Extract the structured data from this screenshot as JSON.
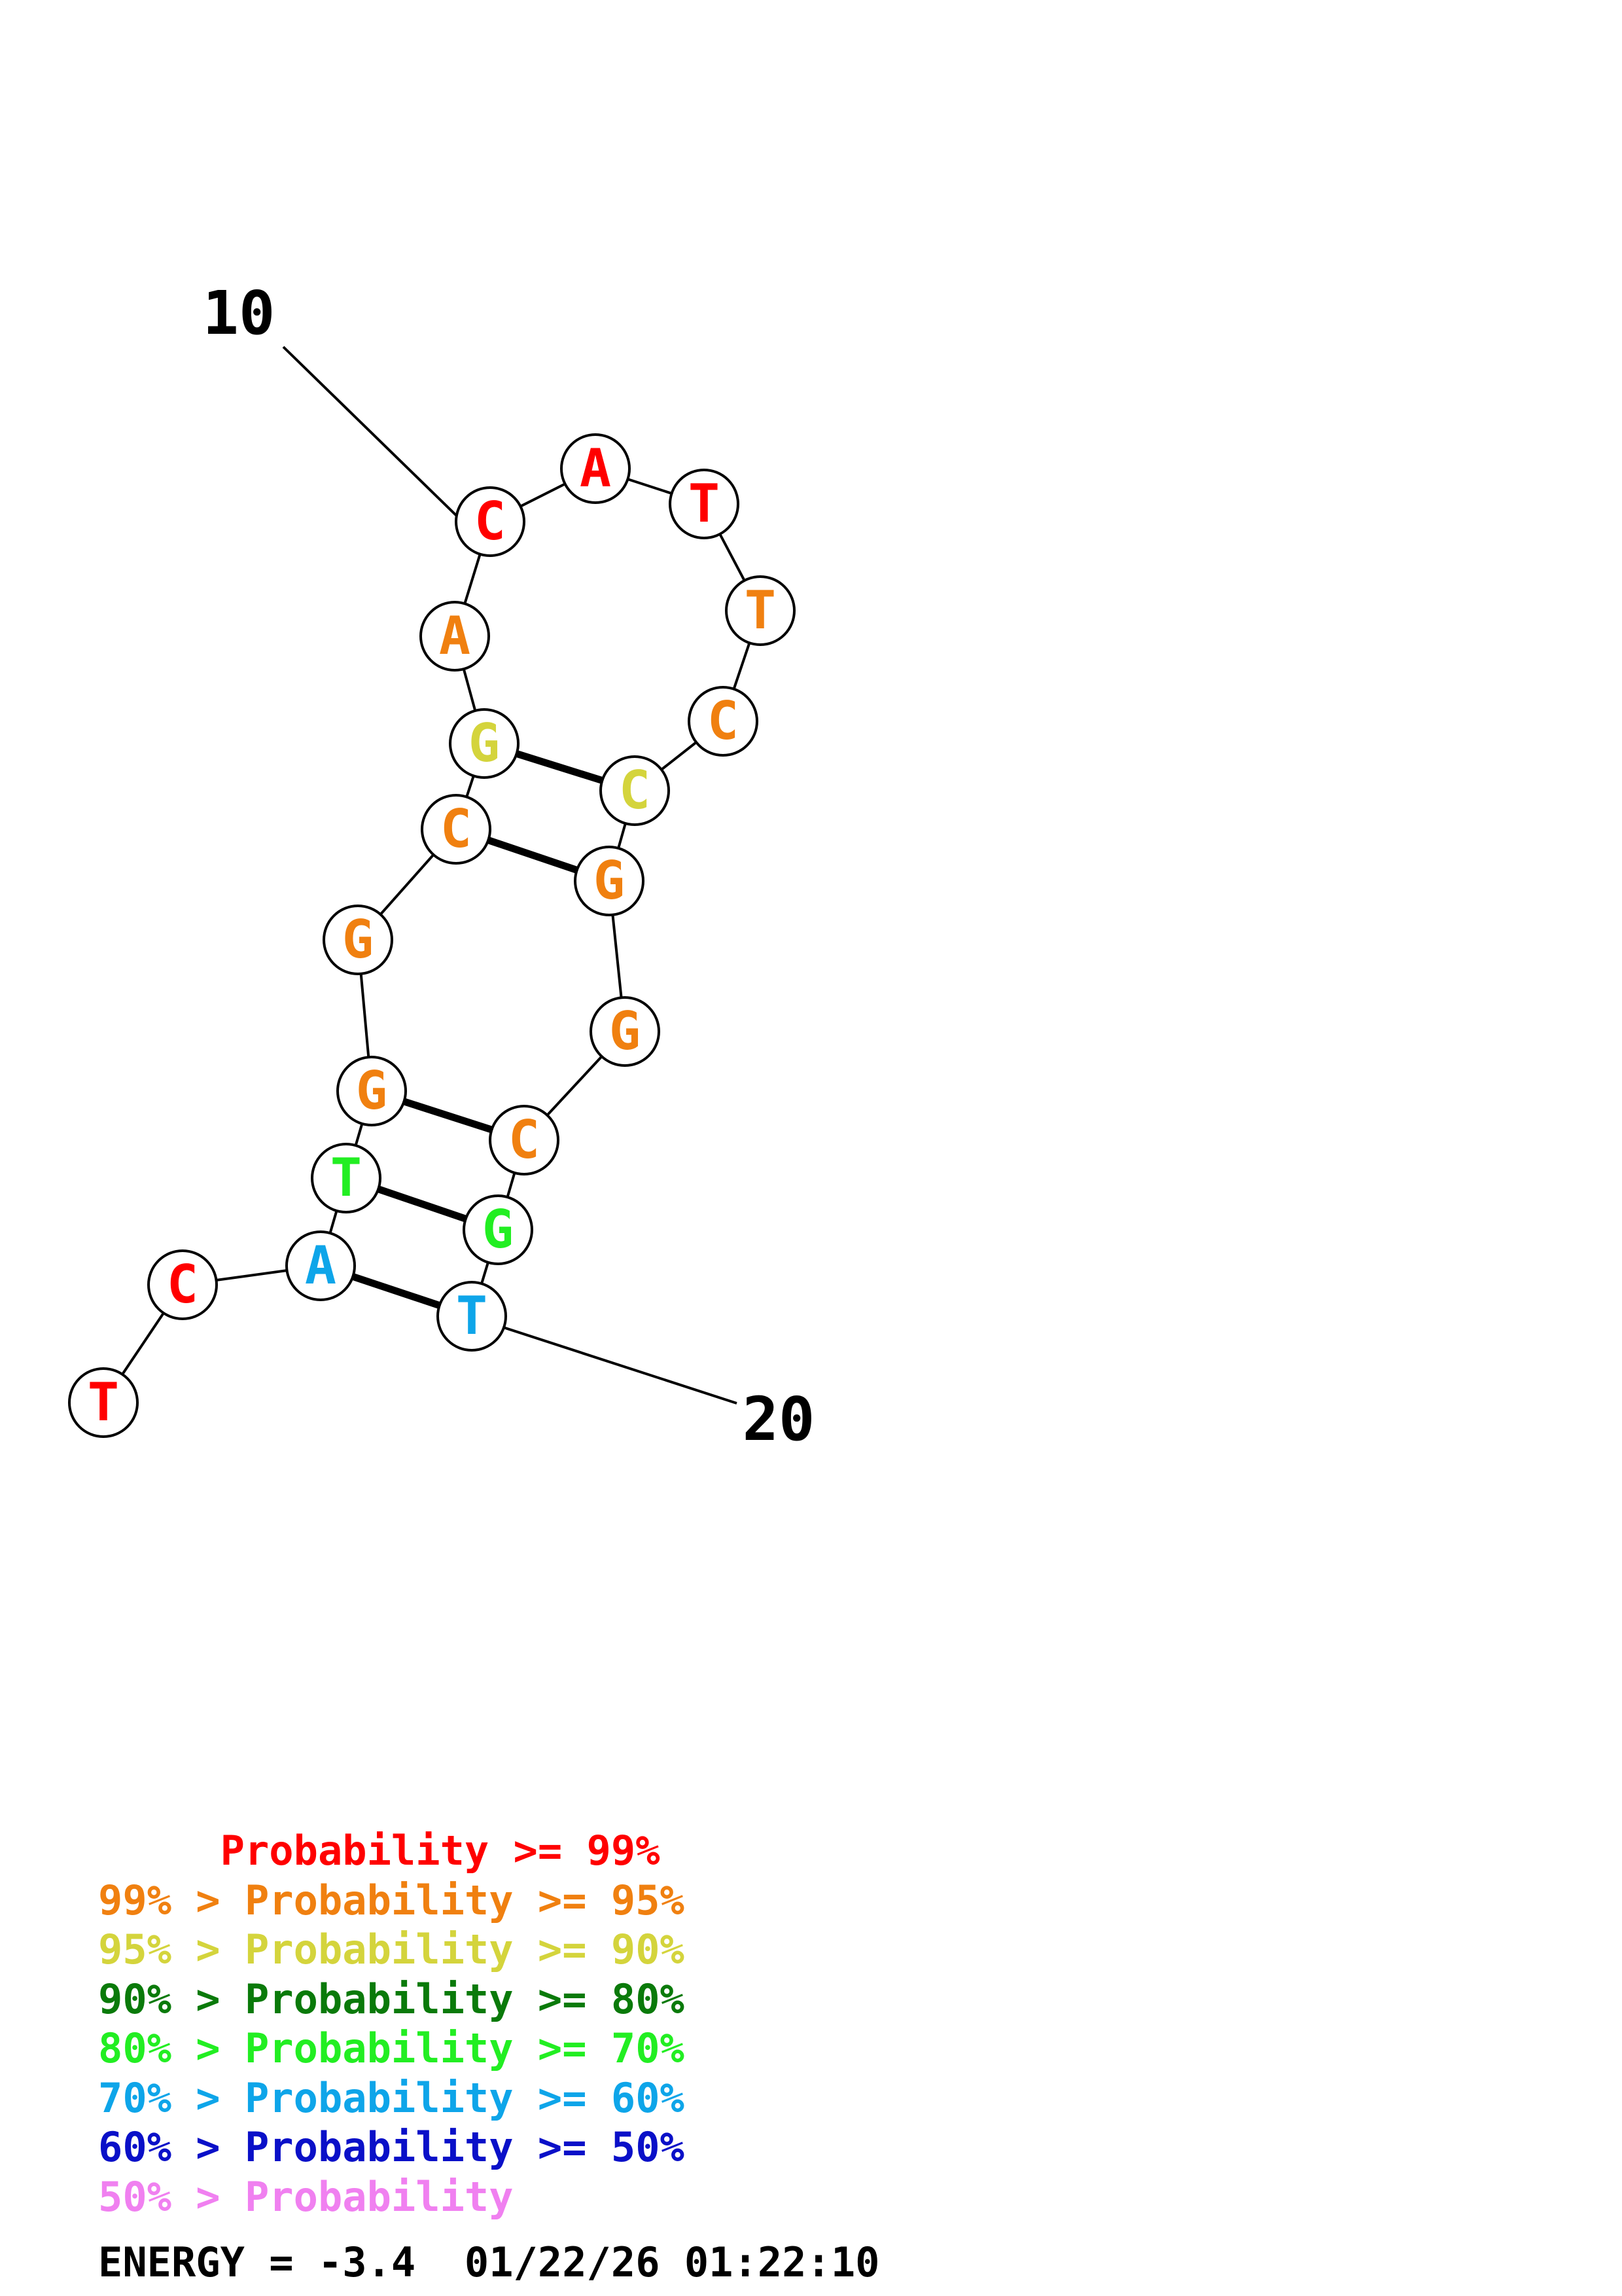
{
  "diagram": {
    "nucleotides": [
      {
        "base": "T",
        "color": "#ff0000"
      },
      {
        "base": "C",
        "color": "#ff0000"
      },
      {
        "base": "A",
        "color": "#0ea5e9"
      },
      {
        "base": "T",
        "color": "#22ee22"
      },
      {
        "base": "G",
        "color": "#f08010"
      },
      {
        "base": "G",
        "color": "#f08010"
      },
      {
        "base": "C",
        "color": "#f08010"
      },
      {
        "base": "G",
        "color": "#d4d43c"
      },
      {
        "base": "A",
        "color": "#f08010"
      },
      {
        "base": "C",
        "color": "#ff0000"
      },
      {
        "base": "A",
        "color": "#ff0000"
      },
      {
        "base": "T",
        "color": "#ff0000"
      },
      {
        "base": "T",
        "color": "#f08010"
      },
      {
        "base": "C",
        "color": "#f08010"
      },
      {
        "base": "C",
        "color": "#d4d43c"
      },
      {
        "base": "G",
        "color": "#f08010"
      },
      {
        "base": "G",
        "color": "#f08010"
      },
      {
        "base": "C",
        "color": "#f08010"
      },
      {
        "base": "G",
        "color": "#22ee22"
      },
      {
        "base": "T",
        "color": "#0ea5e9"
      }
    ],
    "pairs": [
      [
        3,
        20
      ],
      [
        4,
        19
      ],
      [
        5,
        18
      ],
      [
        7,
        16
      ],
      [
        8,
        15
      ]
    ],
    "labels": [
      "10",
      "20"
    ]
  },
  "legend": [
    {
      "text": "     Probability >= 99%",
      "color": "#ff0000"
    },
    {
      "text": "99% > Probability >= 95%",
      "color": "#f08010"
    },
    {
      "text": "95% > Probability >= 90%",
      "color": "#d4d43c"
    },
    {
      "text": "90% > Probability >= 80%",
      "color": "#0a7a0a"
    },
    {
      "text": "80% > Probability >= 70%",
      "color": "#22ee22"
    },
    {
      "text": "70% > Probability >= 60%",
      "color": "#0ea5e9"
    },
    {
      "text": "60% > Probability >= 50%",
      "color": "#0a10c8"
    },
    {
      "text": "50% > Probability",
      "color": "#f080f0"
    }
  ],
  "energy": "ENERGY = -3.4  01/22/26 01:22:10"
}
